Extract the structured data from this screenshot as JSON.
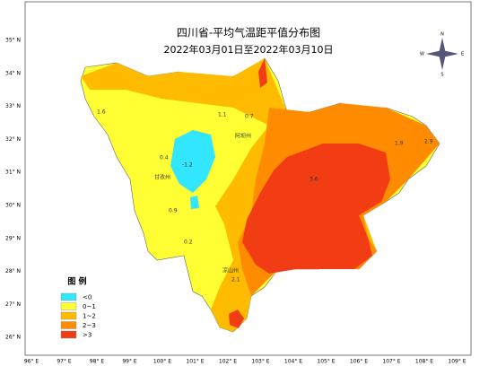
{
  "header": {
    "title": "四川省-平均气温距平值分布图",
    "subtitle": "2022年03月01日至2022年03月10日"
  },
  "axes": {
    "lat_labels": [
      "35° N",
      "34° N",
      "33° N",
      "32° N",
      "31° N",
      "30° N",
      "29° N",
      "28° N",
      "27° N",
      "26° N"
    ],
    "lon_labels": [
      "96° E",
      "97° E",
      "98° E",
      "99° E",
      "100° E",
      "101° E",
      "102° E",
      "103° E",
      "104° E",
      "105° E",
      "106° E",
      "107° E",
      "108° E",
      "109° E"
    ]
  },
  "legend": {
    "title": "图 例",
    "items": [
      {
        "label": "<0",
        "color": "#33e6ff"
      },
      {
        "label": "0~1",
        "color": "#ffff33"
      },
      {
        "label": "1~2",
        "color": "#ffbb00"
      },
      {
        "label": "2~3",
        "color": "#ff8c00"
      },
      {
        "label": ">3",
        "color": "#f23c14"
      }
    ]
  },
  "compass": {
    "labels": [
      "N",
      "E",
      "S",
      "W"
    ]
  },
  "stations": [
    {
      "label": "1.6"
    },
    {
      "label": "1.1"
    },
    {
      "label": "0.7"
    },
    {
      "label": "0.4"
    },
    {
      "label": "-1.2"
    },
    {
      "label": "0.9"
    },
    {
      "label": "0.2"
    },
    {
      "label": "2.1"
    },
    {
      "label": "3.6"
    },
    {
      "label": "2.9"
    },
    {
      "label": "1.9"
    },
    {
      "label": "阿坝州"
    },
    {
      "label": "甘孜州"
    },
    {
      "label": "凉山州"
    }
  ]
}
